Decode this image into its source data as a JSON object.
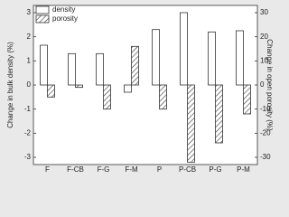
{
  "chart_data": {
    "type": "bar",
    "categories": [
      "F",
      "F-CB",
      "F-G",
      "F-M",
      "P",
      "P-CB",
      "P-G",
      "P-M"
    ],
    "series": [
      {
        "name": "density",
        "color": "#ffffff",
        "values": [
          1.65,
          1.3,
          1.3,
          -0.3,
          2.3,
          3.0,
          2.2,
          2.25
        ]
      },
      {
        "name": "porosity",
        "color": "#333333",
        "axis": "y2",
        "values": [
          -5,
          -1,
          -10,
          16,
          -10,
          -32,
          -24,
          -12
        ]
      }
    ],
    "ylabel": "Change in bulk density (%)",
    "y2label": "Change in open porosity (%)",
    "ylim": [
      -3.3,
      3.3
    ],
    "yticks": [
      -3,
      -2,
      -1,
      0,
      1,
      2,
      3
    ],
    "y2lim": [
      -33,
      33
    ],
    "y2ticks": [
      -30,
      -20,
      -10,
      0,
      10,
      20,
      30
    ],
    "legend": "upper-left"
  }
}
